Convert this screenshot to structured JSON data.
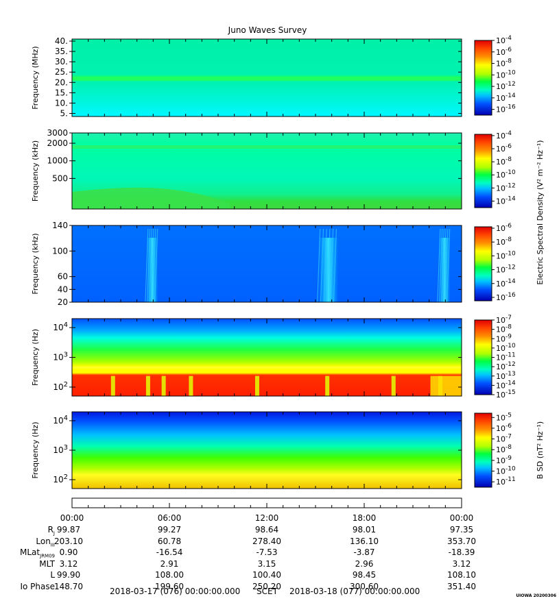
{
  "title": "Juno Waves Survey",
  "colors": {
    "colormap": [
      "#0000c8",
      "#0020ff",
      "#0080ff",
      "#00ffff",
      "#00ff60",
      "#40ff00",
      "#c8ff00",
      "#ffff00",
      "#ff9000",
      "#ff2000",
      "#e00000"
    ],
    "frame": "#000000"
  },
  "chart_data": [
    {
      "type": "heatmap",
      "panel": "high-frequency",
      "ylabel": "Frequency (MHz)",
      "yticks": [
        "40.",
        "35.",
        "30.",
        "25.",
        "20.",
        "15.",
        "10.",
        "5."
      ],
      "ylim": [
        3.5,
        41
      ],
      "yscale": "linear",
      "colorbar": {
        "label": "",
        "ticks": [
          "10",
          "10",
          "10",
          "10",
          "10",
          "10",
          "10"
        ],
        "exponents": [
          "-4",
          "-6",
          "-8",
          "-10",
          "-12",
          "-14",
          "-16"
        ],
        "range": [
          -17,
          -4
        ]
      },
      "features": [
        {
          "name": "narrow band",
          "freq_mhz": 21.5,
          "level_log10": -12.5
        }
      ],
      "background_level_log10": -11.5
    },
    {
      "type": "heatmap",
      "panel": "medium-frequency",
      "ylabel": "Frequency (kHz)",
      "yticks": [
        "3000",
        "2000",
        "1000",
        "500"
      ],
      "ylim": [
        150,
        3000
      ],
      "yscale": "log",
      "colorbar": {
        "label": "",
        "ticks": [
          "10",
          "10",
          "10",
          "10",
          "10",
          "10"
        ],
        "exponents": [
          "-4",
          "-6",
          "-8",
          "-10",
          "-12",
          "-14"
        ],
        "range": [
          -15,
          -3.8
        ]
      },
      "background_level_log10": -11.5
    },
    {
      "type": "heatmap",
      "panel": "low-frequency",
      "ylabel": "Frequency (kHz)",
      "yticks": [
        "140",
        "100",
        "60",
        "40",
        "20"
      ],
      "ylim": [
        20,
        140
      ],
      "yscale": "linear",
      "colorbar": {
        "label": "Electric Spectral Density (V² m⁻² Hz⁻¹)",
        "ticks": [
          "10",
          "10",
          "10",
          "10",
          "10",
          "10"
        ],
        "exponents": [
          "-6",
          "-8",
          "-10",
          "-12",
          "-14",
          "-16"
        ],
        "range": [
          -16.5,
          -5.8
        ]
      },
      "bursts_hours": [
        [
          4.6,
          5.3
        ],
        [
          15.2,
          16.4
        ],
        [
          22.6,
          23.3
        ]
      ],
      "background_level_log10": -14.2
    },
    {
      "type": "heatmap",
      "panel": "electric-audio",
      "ylabel": "Frequency (Hz)",
      "yticks": [
        "10",
        "10",
        "10"
      ],
      "ytick_exponents": [
        "4",
        "3",
        "2"
      ],
      "ylim": [
        50,
        20000
      ],
      "yscale": "log",
      "colorbar": {
        "label": "",
        "ticks": [
          "10",
          "10",
          "10",
          "10",
          "10",
          "10",
          "10",
          "10",
          "10"
        ],
        "exponents": [
          "-7",
          "-8",
          "-9",
          "-10",
          "-11",
          "-12",
          "-13",
          "-14",
          "-15"
        ],
        "range": [
          -15,
          -7
        ]
      }
    },
    {
      "type": "heatmap",
      "panel": "magnetic-audio",
      "ylabel": "Frequency (Hz)",
      "yticks": [
        "10",
        "10",
        "10"
      ],
      "ytick_exponents": [
        "4",
        "3",
        "2"
      ],
      "ylim": [
        50,
        20000
      ],
      "yscale": "log",
      "colorbar": {
        "label": "B SD (nT² Hz⁻¹)",
        "ticks": [
          "10",
          "10",
          "10",
          "10",
          "10",
          "10",
          "10"
        ],
        "exponents": [
          "-5",
          "-6",
          "-7",
          "-8",
          "-9",
          "-10",
          "-11"
        ],
        "range": [
          -11.5,
          -4.6
        ]
      }
    }
  ],
  "time_axis": {
    "labels": [
      "00:00",
      "06:00",
      "12:00",
      "18:00",
      "00:00"
    ],
    "range_hours": [
      0,
      24
    ]
  },
  "ephemeris": {
    "rows": [
      {
        "label": "R",
        "sub": "J",
        "values": [
          "99.87",
          "99.27",
          "98.64",
          "98.01",
          "97.35"
        ]
      },
      {
        "label": "Lon",
        "sub": "III",
        "values": [
          "203.10",
          "60.78",
          "278.40",
          "136.10",
          "353.70"
        ]
      },
      {
        "label": "MLat",
        "sub": "JRM09",
        "values": [
          "0.90",
          "-16.54",
          "-7.53",
          "-3.87",
          "-18.39"
        ]
      },
      {
        "label": "MLT",
        "sub": "",
        "values": [
          "3.12",
          "2.91",
          "3.15",
          "2.96",
          "3.12"
        ]
      },
      {
        "label": "L",
        "sub": "",
        "values": [
          "99.90",
          "108.00",
          "100.40",
          "98.45",
          "108.10"
        ]
      },
      {
        "label": "Io Phase",
        "sub": "",
        "values": [
          "148.70",
          "199.60",
          "250.20",
          "300.60",
          "351.40"
        ]
      }
    ]
  },
  "footer": {
    "start": "2018-03-17 (076) 00:00:00.000",
    "scet": "SCET",
    "end": "2018-03-18 (077) 00:00:00.000",
    "credit": "UIOWA 20200306"
  }
}
